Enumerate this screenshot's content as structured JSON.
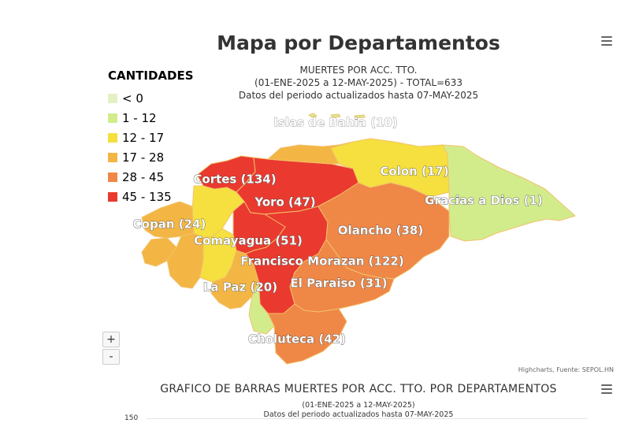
{
  "map_chart": {
    "title": "Mapa por Departamentos",
    "subtitle_lines": [
      "MUERTES POR ACC. TTO.",
      "(01-ENE-2025 a 12-MAY-2025) - TOTAL=633",
      "Datos del periodo actualizados hasta 07-MAY-2025"
    ],
    "credits": "Highcharts, Fuente: SEPOL.HN",
    "zoom_in": "+",
    "zoom_out": "-"
  },
  "chart_data": {
    "type": "choropleth-map",
    "title": "Mapa por Departamentos",
    "legend_title": "CANTIDADES",
    "legend_position": "top-left",
    "data_classes": [
      {
        "label": "< 0",
        "color": "#e3f2c4"
      },
      {
        "label": "1 - 12",
        "color": "#d2ec8c"
      },
      {
        "label": "12 - 17",
        "color": "#f5e03f"
      },
      {
        "label": "17 - 28",
        "color": "#f3b544"
      },
      {
        "label": "28 - 45",
        "color": "#ef8747"
      },
      {
        "label": "45 - 135",
        "color": "#ea3a2f"
      }
    ],
    "regions": [
      {
        "name": "Islas de Bahia",
        "value": 10,
        "label": "Islas de Bahia (10)"
      },
      {
        "name": "Cortes",
        "value": 134,
        "label": "Cortes (134)"
      },
      {
        "name": "Colon",
        "value": 17,
        "label": "Colon (17)"
      },
      {
        "name": "Yoro",
        "value": 47,
        "label": "Yoro (47)"
      },
      {
        "name": "Gracias a Dios",
        "value": 1,
        "label": "Gracias a Dios (1)"
      },
      {
        "name": "Copan",
        "value": 24,
        "label": "Copan (24)"
      },
      {
        "name": "Olancho",
        "value": 38,
        "label": "Olancho (38)"
      },
      {
        "name": "Comayagua",
        "value": 51,
        "label": "Comayagua (51)"
      },
      {
        "name": "Francisco Morazan",
        "value": 122,
        "label": "Francisco Morazan (122)"
      },
      {
        "name": "La Paz",
        "value": 20,
        "label": "La Paz (20)"
      },
      {
        "name": "El Paraiso",
        "value": 31,
        "label": "El Paraiso (31)"
      },
      {
        "name": "Choluteca",
        "value": 42,
        "label": "Choluteca (42)"
      }
    ]
  },
  "bar_chart": {
    "title": "GRAFICO DE BARRAS MUERTES POR ACC. TTO. POR DEPARTAMENTOS",
    "subtitle_lines": [
      "(01-ENE-2025 a 12-MAY-2025)",
      "Datos del periodo actualizados hasta 07-MAY-2025"
    ],
    "y_tick_top": "150"
  }
}
